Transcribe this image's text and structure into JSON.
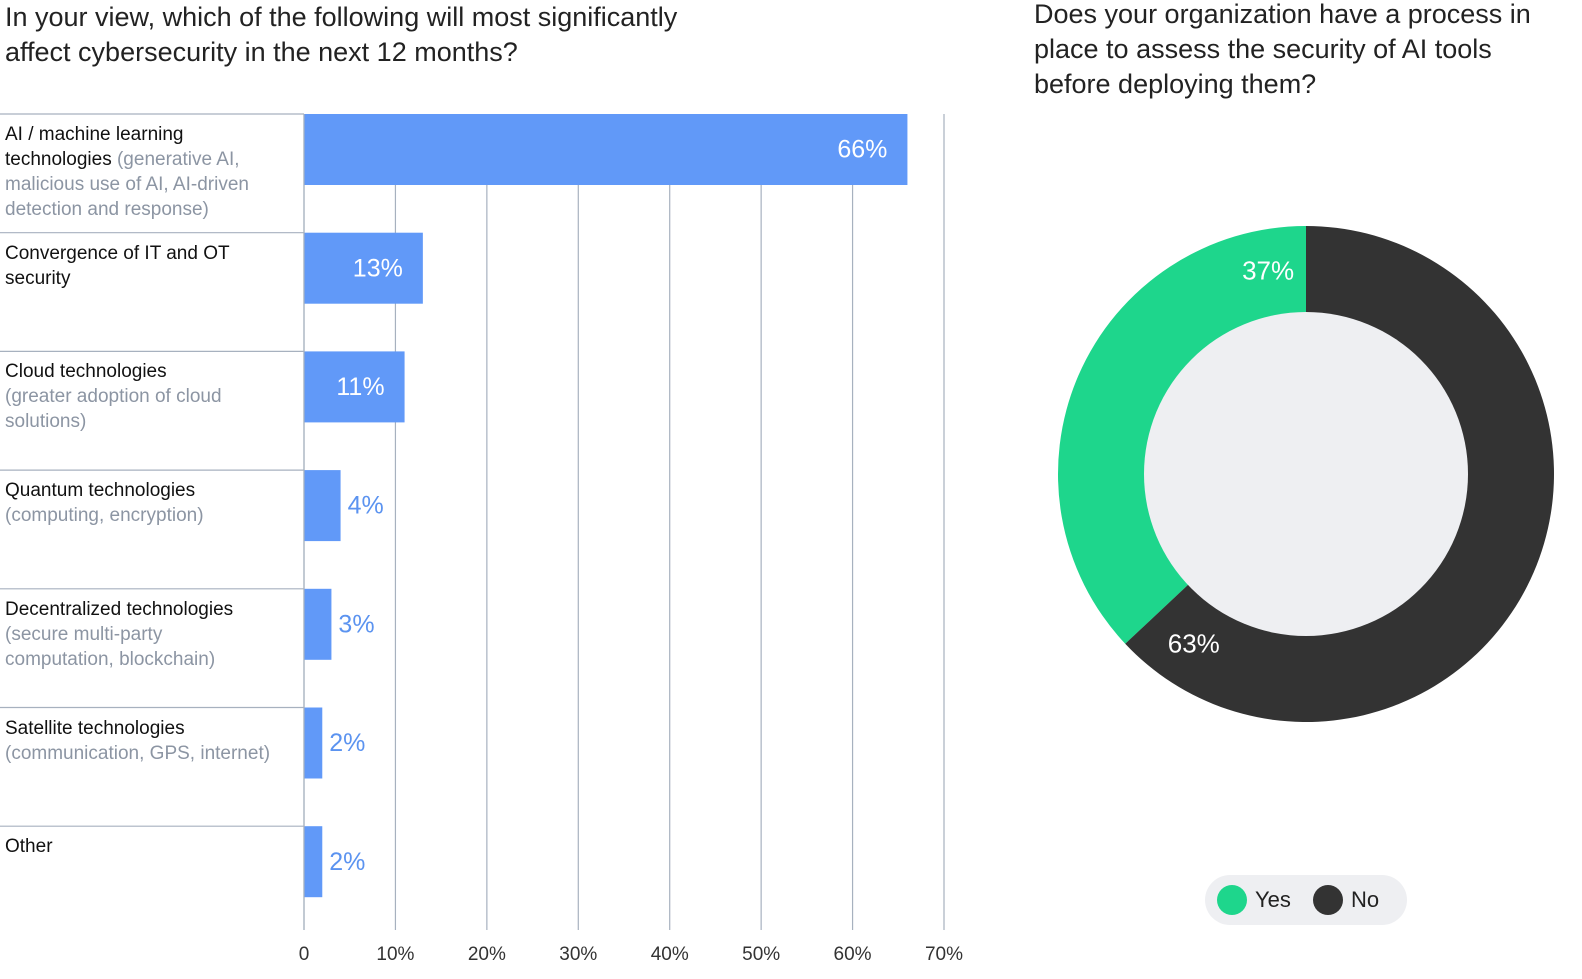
{
  "chart_data": [
    {
      "type": "bar",
      "orientation": "horizontal",
      "title": "In your view, which of the following will most significantly affect cybersecurity in the next 12 months?",
      "categories": [
        "AI / machine learning technologies",
        "Convergence of IT and OT security",
        "Cloud technologies",
        "Quantum technologies",
        "Decentralized technologies",
        "Satellite technologies",
        "Other"
      ],
      "category_details": [
        "(generative AI, malicious use of AI, AI-driven detection and response)",
        null,
        "(greater adoption of cloud solutions)",
        "(computing, encryption)",
        "(secure multi-party computation, blockchain)",
        "(communication, GPS, internet)",
        null
      ],
      "values": [
        66,
        13,
        11,
        4,
        3,
        2,
        2
      ],
      "value_labels": [
        "66%",
        "13%",
        "11%",
        "4%",
        "3%",
        "2%",
        "2%"
      ],
      "color": "#6199f8",
      "xlim": [
        0,
        70
      ],
      "xticks": [
        0,
        {
          "value": 10,
          "label": "10%"
        },
        {
          "value": 20,
          "label": "20%"
        },
        {
          "value": 30,
          "label": "30%"
        },
        {
          "value": 40,
          "label": "40%"
        },
        {
          "value": 50,
          "label": "50%"
        },
        {
          "value": 60,
          "label": "60%"
        },
        {
          "value": 70,
          "label": "70%"
        }
      ],
      "grid": true
    },
    {
      "type": "donut",
      "title": "Does your organization have a process in place to assess the security of AI tools before deploying them?",
      "categories": [
        "Yes",
        "No"
      ],
      "values": [
        37,
        63
      ],
      "value_labels": [
        "37%",
        "63%"
      ],
      "colors": [
        "#1ed68c",
        "#333333"
      ]
    }
  ]
}
